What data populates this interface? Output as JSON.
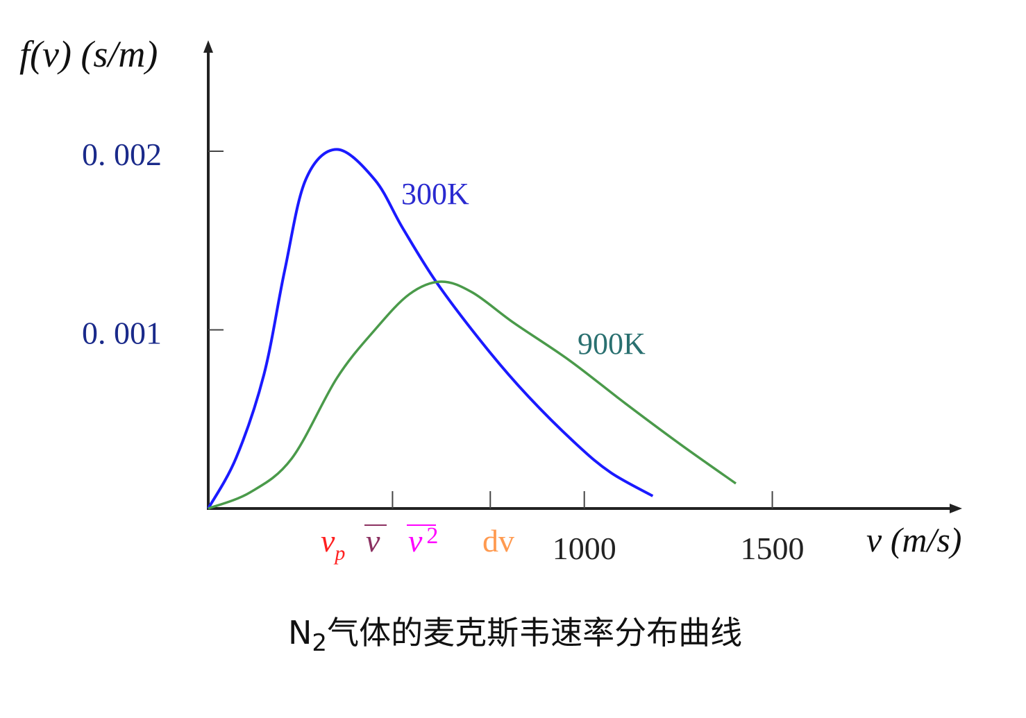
{
  "chart_data": {
    "type": "line",
    "title": "N₂气体的麦克斯韦速率分布曲线",
    "title_parts": {
      "main": "N",
      "sub": "2",
      "rest": "气体的麦克斯韦速率分布曲线"
    },
    "ylabel": "f(v) (s/m)",
    "xlabel": "v (m/s)",
    "xlim": [
      0,
      1600
    ],
    "ylim": [
      0,
      0.0025
    ],
    "grid": false,
    "y_ticks": [
      {
        "value": 0.001,
        "label": "0. 001"
      },
      {
        "value": 0.002,
        "label": "0. 002"
      }
    ],
    "x_ticks": [
      {
        "value": 1000,
        "label": "1000"
      },
      {
        "value": 1500,
        "label": "1500"
      }
    ],
    "x_tick_marks_unlabeled": [
      490,
      750
    ],
    "special_labels": [
      {
        "label": "v",
        "sub": "p",
        "color": "#ff2020"
      },
      {
        "label": "v",
        "overline": true,
        "color": "#8b3060"
      },
      {
        "label": "v",
        "sup": "2",
        "overline": true,
        "color": "#ff00ff"
      },
      {
        "label": "dv",
        "color": "#ff9a50"
      }
    ],
    "series": [
      {
        "name": "300K",
        "color": "#1a1aff",
        "label_color": "#2a2ad0",
        "x": [
          0,
          74,
          148,
          203,
          259,
          342,
          443,
          517,
          609,
          739,
          850,
          979,
          1071,
          1182
        ],
        "y": [
          0,
          0.000283,
          0.000749,
          0.00133,
          0.00184,
          0.00201,
          0.00184,
          0.00157,
          0.00126,
          0.0009,
          0.00063,
          0.00036,
          0.0002,
          7e-05
        ]
      },
      {
        "name": "900K",
        "color": "#4a9a4a",
        "label_color": "#2a7070",
        "x": [
          0,
          111,
          222,
          342,
          443,
          535,
          618,
          702,
          812,
          960,
          1108,
          1255,
          1403
        ],
        "y": [
          0,
          9e-05,
          0.00028,
          0.00073,
          0.001,
          0.0012,
          0.00127,
          0.00121,
          0.00104,
          0.00083,
          0.00059,
          0.00036,
          0.00014
        ]
      }
    ]
  }
}
